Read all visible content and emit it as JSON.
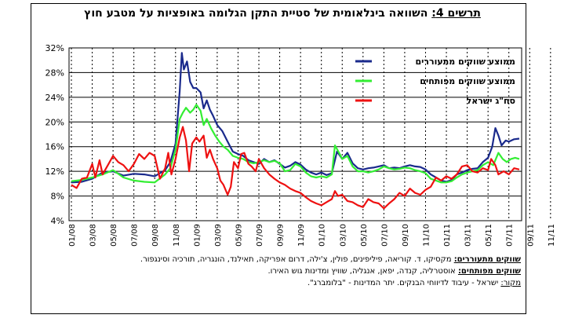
{
  "title": {
    "label": "תרשים 4:",
    "text": "השוואה בינלאומית של סטיית התקן הגלומה באופציות על מטבע חוץ"
  },
  "notes": {
    "emerging_label": "שווקים מתעוררים:",
    "emerging_text": "מקסיקו, ד. קוריאה, פיליפינים, פולין, צ'ילה, דרום אפריקה, תאילנד, הונגריה, תורכיה וסינגפור.",
    "developed_label": "שווקים מפותחים:",
    "developed_text": "אוסטרליה, קנדה, יפאן, אנגליה, שוויץ ומדינות גוש האירו.",
    "source_label": "מקור:",
    "source_text": "ישראל - עיבוד לדיווחי הבנקים. יתר המדינות - \"בלומברג\"."
  },
  "colors": {
    "emerging": "#1a2a8c",
    "developed": "#33ee33",
    "israel": "#ee1111"
  },
  "chart_data": {
    "type": "line",
    "xlabel": "",
    "ylabel": "",
    "y_tick_labels": [
      "32%",
      "28%",
      "24%",
      "20%",
      "16%",
      "12%",
      "8%",
      "4%"
    ],
    "ylim": [
      4,
      32
    ],
    "x_tick_labels": [
      "01/08",
      "03/08",
      "05/08",
      "07/08",
      "09/08",
      "11/08",
      "01/09",
      "03/09",
      "05/09",
      "07/09",
      "09/09",
      "11/09",
      "01/10",
      "03/10",
      "05/10",
      "07/10",
      "09/10",
      "11/10",
      "01/11",
      "03/11",
      "05/11",
      "07/11",
      "09/11",
      "11/11"
    ],
    "grid": "vertical dashed lines at each month tick, horizontal solid lines at each y tick",
    "legend_position": "top-right",
    "series": [
      {
        "name": "ממוצע שווקים מתעוררים",
        "color": "#1a2a8c",
        "points": [
          [
            0,
            10.2
          ],
          [
            1,
            10.3
          ],
          [
            2,
            10.8
          ],
          [
            3,
            11.8
          ],
          [
            4,
            12.0
          ],
          [
            5,
            11.3
          ],
          [
            6,
            11.6
          ],
          [
            7,
            11.5
          ],
          [
            8,
            11.2
          ],
          [
            9,
            12.2
          ],
          [
            9.5,
            13.5
          ],
          [
            10,
            16.5
          ],
          [
            10.4,
            25
          ],
          [
            10.6,
            31.2
          ],
          [
            10.8,
            28.5
          ],
          [
            11.1,
            29.8
          ],
          [
            11.4,
            26.5
          ],
          [
            11.7,
            25.5
          ],
          [
            12,
            25.5
          ],
          [
            12.4,
            24.8
          ],
          [
            12.7,
            22.2
          ],
          [
            13,
            23.5
          ],
          [
            13.3,
            22.0
          ],
          [
            13.6,
            21.0
          ],
          [
            14,
            19.5
          ],
          [
            14.5,
            18.5
          ],
          [
            15,
            16.8
          ],
          [
            15.5,
            15.2
          ],
          [
            16,
            14.8
          ],
          [
            16.5,
            14.5
          ],
          [
            17,
            13.8
          ],
          [
            17.5,
            13.5
          ],
          [
            18,
            13.2
          ],
          [
            18.5,
            14.0
          ],
          [
            19,
            13.5
          ],
          [
            19.5,
            13.8
          ],
          [
            20,
            13.2
          ],
          [
            20.5,
            12.6
          ],
          [
            21,
            12.9
          ],
          [
            21.5,
            13.5
          ],
          [
            22,
            13.1
          ],
          [
            22.5,
            12.3
          ],
          [
            23,
            11.8
          ],
          [
            23.5,
            11.5
          ],
          [
            24,
            11.8
          ],
          [
            24.5,
            11.4
          ],
          [
            25,
            11.7
          ],
          [
            25.5,
            15.2
          ],
          [
            26,
            14.0
          ],
          [
            26.5,
            15.0
          ],
          [
            27,
            13.3
          ],
          [
            27.5,
            12.5
          ],
          [
            28,
            12.3
          ],
          [
            28.5,
            12.5
          ],
          [
            29,
            12.6
          ],
          [
            29.5,
            12.8
          ],
          [
            30,
            13.0
          ],
          [
            30.5,
            12.5
          ],
          [
            31,
            12.6
          ],
          [
            31.5,
            12.5
          ],
          [
            32,
            12.8
          ],
          [
            32.5,
            13.0
          ],
          [
            33,
            12.8
          ],
          [
            33.5,
            12.7
          ],
          [
            34,
            12.3
          ],
          [
            34.5,
            11.5
          ],
          [
            35,
            11.0
          ],
          [
            35.5,
            10.5
          ],
          [
            36,
            10.3
          ],
          [
            36.5,
            10.6
          ],
          [
            37,
            11.5
          ],
          [
            37.5,
            11.8
          ],
          [
            38,
            12.2
          ],
          [
            38.5,
            12.4
          ],
          [
            39,
            12.5
          ],
          [
            39.5,
            13.5
          ],
          [
            40,
            14.2
          ],
          [
            40.4,
            16.0
          ],
          [
            40.7,
            19.0
          ],
          [
            41,
            17.8
          ],
          [
            41.3,
            16.2
          ],
          [
            41.7,
            17.0
          ],
          [
            42,
            16.8
          ],
          [
            42.5,
            17.2
          ],
          [
            43,
            17.3
          ]
        ]
      },
      {
        "name": "ממוצע שווקים מפותחים",
        "color": "#33ee33",
        "points": [
          [
            0,
            10.4
          ],
          [
            1,
            10.6
          ],
          [
            2,
            11.0
          ],
          [
            3,
            11.5
          ],
          [
            4,
            12.2
          ],
          [
            5,
            11.0
          ],
          [
            6,
            10.5
          ],
          [
            7,
            10.3
          ],
          [
            8,
            10.2
          ],
          [
            9,
            11.5
          ],
          [
            9.5,
            12.5
          ],
          [
            10,
            15.5
          ],
          [
            10.4,
            20.5
          ],
          [
            10.7,
            21.5
          ],
          [
            11,
            22.3
          ],
          [
            11.4,
            21.5
          ],
          [
            11.7,
            22.0
          ],
          [
            12,
            22.8
          ],
          [
            12.4,
            21.8
          ],
          [
            12.7,
            19.5
          ],
          [
            13,
            20.5
          ],
          [
            13.4,
            19.0
          ],
          [
            13.8,
            17.8
          ],
          [
            14.2,
            16.8
          ],
          [
            14.6,
            16.0
          ],
          [
            15,
            15.5
          ],
          [
            15.5,
            14.5
          ],
          [
            16,
            14.2
          ],
          [
            16.5,
            14.0
          ],
          [
            17,
            13.5
          ],
          [
            17.5,
            13.3
          ],
          [
            18,
            13.5
          ],
          [
            18.5,
            13.8
          ],
          [
            19,
            13.5
          ],
          [
            19.5,
            13.7
          ],
          [
            20,
            13.3
          ],
          [
            20.5,
            12.0
          ],
          [
            21,
            12.2
          ],
          [
            21.5,
            13.2
          ],
          [
            22,
            12.8
          ],
          [
            22.5,
            11.8
          ],
          [
            23,
            11.2
          ],
          [
            23.5,
            11.0
          ],
          [
            24,
            11.2
          ],
          [
            24.5,
            11.0
          ],
          [
            25,
            11.5
          ],
          [
            25.3,
            16.2
          ],
          [
            25.7,
            15.0
          ],
          [
            26,
            14.0
          ],
          [
            26.5,
            14.5
          ],
          [
            27,
            12.8
          ],
          [
            27.5,
            12.0
          ],
          [
            28,
            12.0
          ],
          [
            28.5,
            11.8
          ],
          [
            29,
            12.0
          ],
          [
            29.5,
            12.3
          ],
          [
            30,
            12.8
          ],
          [
            30.5,
            12.5
          ],
          [
            31,
            12.3
          ],
          [
            31.5,
            12.4
          ],
          [
            32,
            12.6
          ],
          [
            32.5,
            12.5
          ],
          [
            33,
            12.2
          ],
          [
            33.5,
            12.0
          ],
          [
            34,
            11.7
          ],
          [
            34.5,
            10.8
          ],
          [
            35,
            10.5
          ],
          [
            35.5,
            10.2
          ],
          [
            36,
            10.2
          ],
          [
            36.5,
            10.4
          ],
          [
            37,
            11.0
          ],
          [
            37.5,
            11.5
          ],
          [
            38,
            11.8
          ],
          [
            38.5,
            12.0
          ],
          [
            39,
            12.2
          ],
          [
            39.5,
            13.0
          ],
          [
            40,
            13.5
          ],
          [
            40.5,
            13.0
          ],
          [
            41,
            15.0
          ],
          [
            41.4,
            14.0
          ],
          [
            41.8,
            13.5
          ],
          [
            42.2,
            14.0
          ],
          [
            42.6,
            14.2
          ],
          [
            43,
            14.0
          ]
        ]
      },
      {
        "name": "סח\"ג ישראל",
        "color": "#ee1111",
        "points": [
          [
            0,
            9.8
          ],
          [
            0.5,
            9.3
          ],
          [
            1,
            10.8
          ],
          [
            1.5,
            11.0
          ],
          [
            2,
            13.2
          ],
          [
            2.3,
            11.0
          ],
          [
            2.7,
            13.8
          ],
          [
            3,
            11.5
          ],
          [
            3.5,
            13.0
          ],
          [
            4,
            14.5
          ],
          [
            4.5,
            13.5
          ],
          [
            5,
            13.0
          ],
          [
            5.5,
            12.0
          ],
          [
            6,
            13.2
          ],
          [
            6.5,
            14.8
          ],
          [
            7,
            14.0
          ],
          [
            7.5,
            15.0
          ],
          [
            8,
            14.5
          ],
          [
            8.5,
            10.8
          ],
          [
            9,
            12.5
          ],
          [
            9.3,
            15.0
          ],
          [
            9.6,
            11.5
          ],
          [
            10,
            14.0
          ],
          [
            10.4,
            17.5
          ],
          [
            10.7,
            19.2
          ],
          [
            11,
            17.0
          ],
          [
            11.3,
            12.0
          ],
          [
            11.6,
            16.5
          ],
          [
            12,
            17.5
          ],
          [
            12.3,
            16.8
          ],
          [
            12.7,
            17.8
          ],
          [
            13,
            14.2
          ],
          [
            13.3,
            15.5
          ],
          [
            13.6,
            14.0
          ],
          [
            14,
            12.5
          ],
          [
            14.3,
            10.5
          ],
          [
            14.6,
            9.8
          ],
          [
            15,
            8.2
          ],
          [
            15.3,
            9.5
          ],
          [
            15.6,
            13.5
          ],
          [
            16,
            12.5
          ],
          [
            16.3,
            14.8
          ],
          [
            16.6,
            15.0
          ],
          [
            17,
            13.2
          ],
          [
            17.3,
            12.8
          ],
          [
            17.7,
            12.0
          ],
          [
            18,
            14.0
          ],
          [
            18.5,
            12.5
          ],
          [
            19,
            11.5
          ],
          [
            19.5,
            10.8
          ],
          [
            20,
            10.2
          ],
          [
            20.5,
            9.8
          ],
          [
            21,
            9.2
          ],
          [
            21.5,
            8.8
          ],
          [
            22,
            8.5
          ],
          [
            22.5,
            7.8
          ],
          [
            23,
            7.2
          ],
          [
            23.5,
            6.8
          ],
          [
            24,
            6.5
          ],
          [
            24.5,
            7.0
          ],
          [
            25,
            7.5
          ],
          [
            25.3,
            8.8
          ],
          [
            25.6,
            8.0
          ],
          [
            26,
            8.2
          ],
          [
            26.5,
            7.2
          ],
          [
            27,
            7.0
          ],
          [
            27.5,
            6.5
          ],
          [
            28,
            6.2
          ],
          [
            28.5,
            7.5
          ],
          [
            29,
            7.0
          ],
          [
            29.5,
            6.8
          ],
          [
            30,
            6.0
          ],
          [
            30.5,
            6.8
          ],
          [
            31,
            7.5
          ],
          [
            31.5,
            8.5
          ],
          [
            32,
            8.0
          ],
          [
            32.5,
            9.2
          ],
          [
            33,
            8.5
          ],
          [
            33.5,
            8.2
          ],
          [
            34,
            9.0
          ],
          [
            34.5,
            9.5
          ],
          [
            35,
            11.0
          ],
          [
            35.5,
            10.5
          ],
          [
            36,
            11.2
          ],
          [
            36.5,
            10.8
          ],
          [
            37,
            11.5
          ],
          [
            37.5,
            12.8
          ],
          [
            38,
            13.0
          ],
          [
            38.5,
            12.0
          ],
          [
            39,
            11.8
          ],
          [
            39.5,
            12.5
          ],
          [
            40,
            12.2
          ],
          [
            40.3,
            14.0
          ],
          [
            40.7,
            13.0
          ],
          [
            41,
            11.5
          ],
          [
            41.5,
            12.0
          ],
          [
            42,
            11.5
          ],
          [
            42.5,
            12.5
          ],
          [
            43,
            12.3
          ]
        ]
      }
    ]
  }
}
